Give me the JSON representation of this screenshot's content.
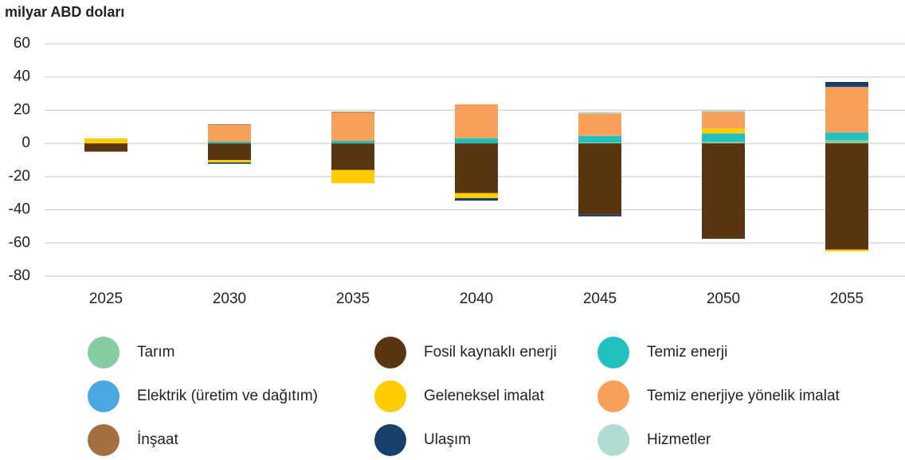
{
  "chart_data": {
    "type": "stacked_bar",
    "y_axis_label": "milyar ABD doları",
    "categories": [
      "2025",
      "2030",
      "2035",
      "2040",
      "2045",
      "2050",
      "2055"
    ],
    "ylim": [
      -80,
      60
    ],
    "yticks": [
      -80,
      -60,
      -40,
      -20,
      0,
      20,
      40,
      60
    ],
    "grid": true,
    "series": [
      {
        "name": "Tarım",
        "color": "#85cca0",
        "values": [
          0,
          0,
          0,
          0,
          0.5,
          1,
          2
        ]
      },
      {
        "name": "Elektrik (üretim ve dağıtım)",
        "color": "#4aa8e0",
        "values": [
          0,
          0,
          0,
          0,
          0,
          0,
          0
        ]
      },
      {
        "name": "İnşaat",
        "color": "#a57040",
        "values": [
          0,
          0.5,
          0.5,
          0,
          0,
          0,
          0
        ]
      },
      {
        "name": "Fosil kaynaklı enerji",
        "color": "#5a3512",
        "values": [
          -5,
          -10,
          -16,
          -30,
          -43,
          -57.5,
          -64
        ]
      },
      {
        "name": "Geleneksel imalat",
        "color": "#ffcc00",
        "values": [
          3,
          -1.5,
          -8,
          -3,
          0,
          3,
          -1
        ]
      },
      {
        "name": "Ulaşım",
        "color": "#16406a",
        "values": [
          0,
          -0.8,
          0,
          -1.5,
          -1,
          0,
          3
        ]
      },
      {
        "name": "Temiz enerji",
        "color": "#22bfbf",
        "values": [
          0,
          1,
          1.5,
          3,
          4,
          5,
          4.5
        ]
      },
      {
        "name": "Temiz enerjiye yönelik imalat",
        "color": "#f7a05c",
        "values": [
          0,
          10,
          17,
          20.5,
          13.5,
          10,
          27.5
        ]
      },
      {
        "name": "Hizmetler",
        "color": "#b0ddd2",
        "values": [
          0,
          0,
          0,
          0,
          1,
          1,
          0
        ]
      }
    ]
  }
}
